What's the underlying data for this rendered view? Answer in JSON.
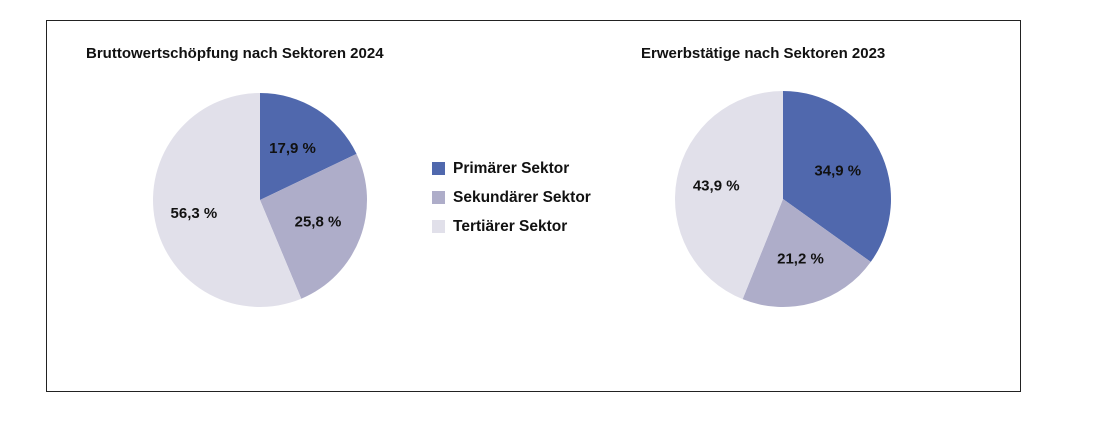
{
  "colors": {
    "primary": "#5068ad",
    "secondary": "#aeadc9",
    "tertiary": "#e1e0ea"
  },
  "legend": [
    {
      "label": "Primärer Sektor",
      "color": "#5068ad"
    },
    {
      "label": "Sekundärer Sektor",
      "color": "#aeadc9"
    },
    {
      "label": "Tertiärer Sektor",
      "color": "#e1e0ea"
    }
  ],
  "chart_data": [
    {
      "type": "pie",
      "title": "Bruttowertschöpfung nach Sektoren 2024",
      "categories": [
        "Primärer Sektor",
        "Sekundärer Sektor",
        "Tertiärer Sektor"
      ],
      "values": [
        17.9,
        25.8,
        56.3
      ],
      "labels": [
        "17,9 %",
        "25,8 %",
        "56,3 %"
      ],
      "colors": [
        "#5068ad",
        "#aeadc9",
        "#e1e0ea"
      ]
    },
    {
      "type": "pie",
      "title": "Erwerbstätige nach Sektoren 2023",
      "categories": [
        "Primärer Sektor",
        "Sekundärer Sektor",
        "Tertiärer Sektor"
      ],
      "values": [
        34.9,
        21.2,
        43.9
      ],
      "labels": [
        "34,9 %",
        "21,2 %",
        "43,9 %"
      ],
      "colors": [
        "#5068ad",
        "#aeadc9",
        "#e1e0ea"
      ]
    }
  ]
}
